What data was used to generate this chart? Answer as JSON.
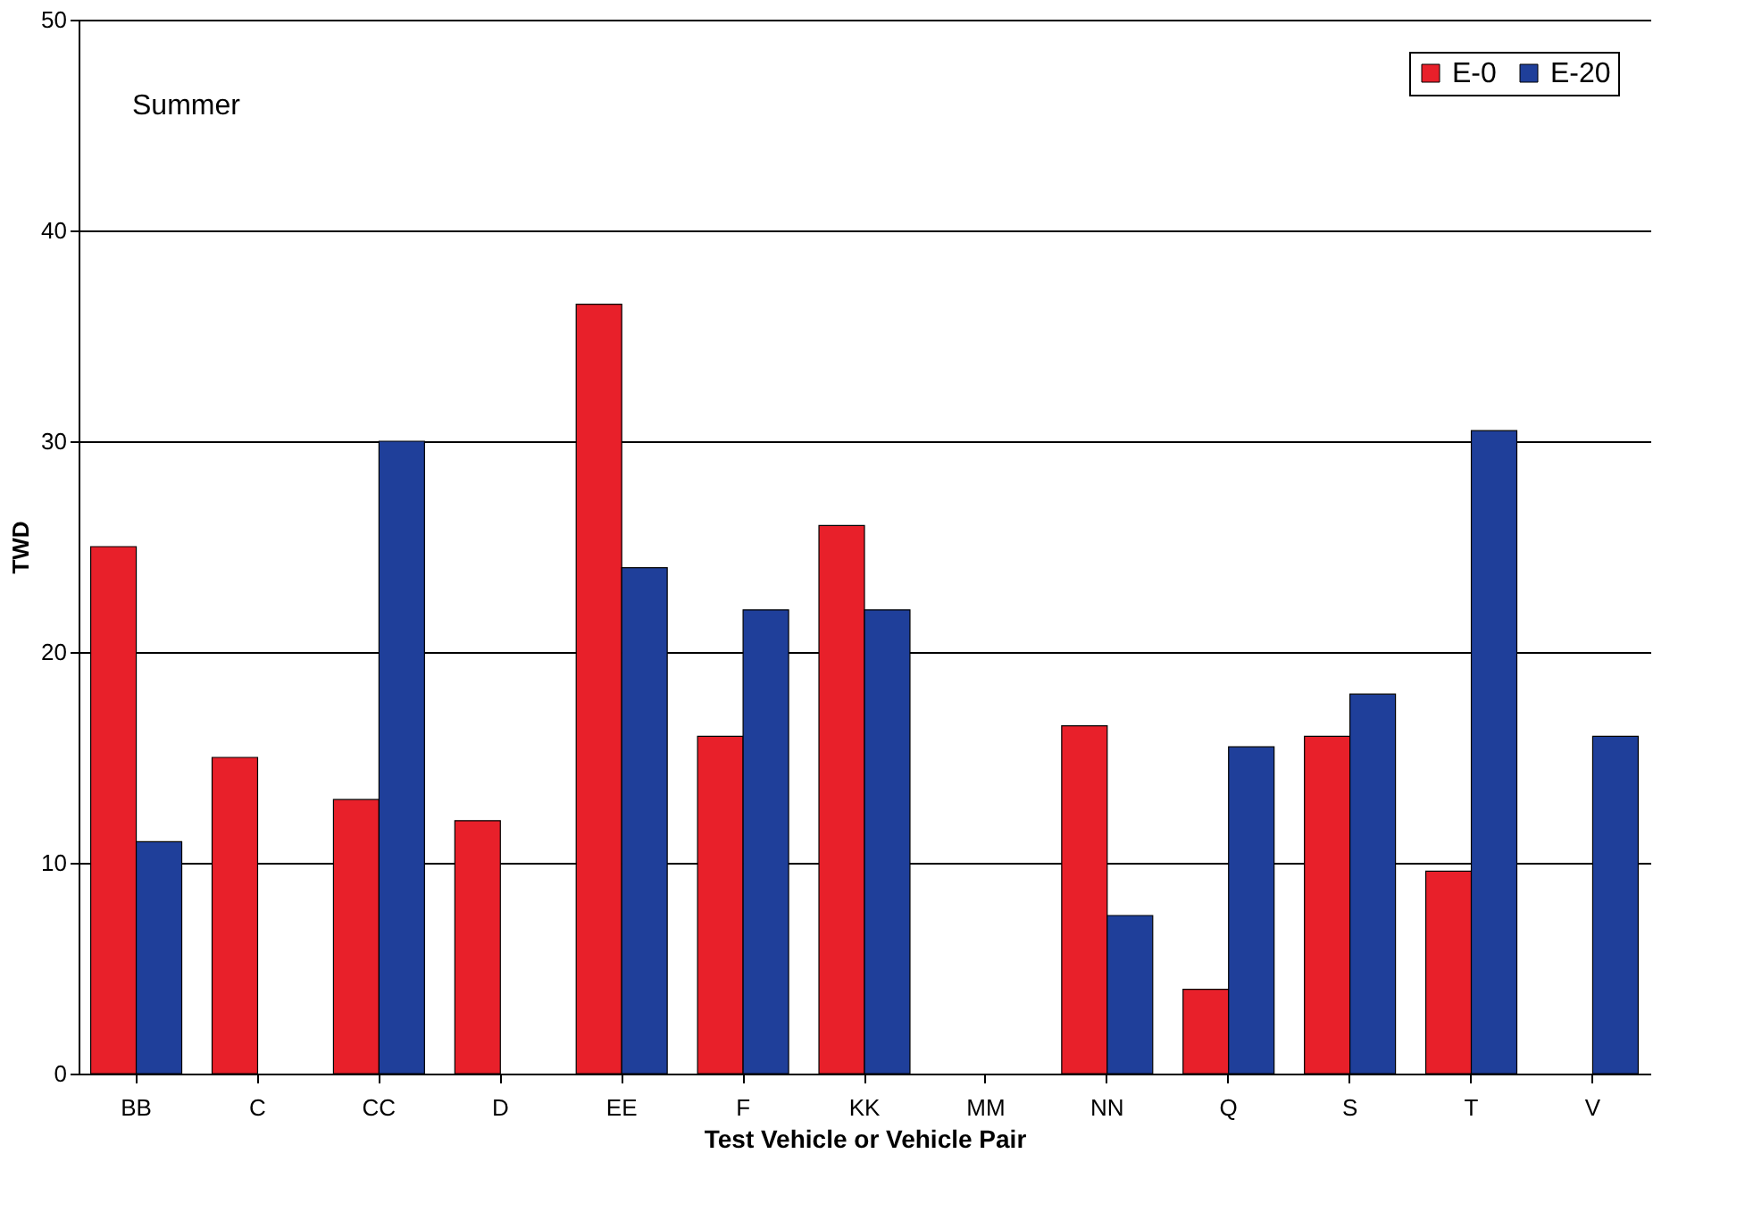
{
  "chart_data": {
    "type": "bar",
    "xlabel": "Test Vehicle or Vehicle Pair",
    "ylabel": "TWD",
    "annotations": [
      "Summer"
    ],
    "categories": [
      "BB",
      "C",
      "CC",
      "D",
      "EE",
      "F",
      "KK",
      "MM",
      "NN",
      "Q",
      "S",
      "T",
      "V"
    ],
    "series": [
      {
        "name": "E-0",
        "color": "#e8202a",
        "values": [
          25,
          15,
          13,
          12,
          36.5,
          16,
          26,
          null,
          16.5,
          4,
          16,
          9.6,
          null
        ]
      },
      {
        "name": "E-20",
        "color": "#1f3f9a",
        "values": [
          11,
          null,
          30,
          null,
          24,
          22,
          22,
          null,
          7.5,
          15.5,
          18,
          30.5,
          16
        ]
      }
    ],
    "ylim": [
      0,
      50
    ],
    "yticks": [
      0,
      10,
      20,
      30,
      40,
      50
    ],
    "grid": "y",
    "legend": "top right"
  }
}
